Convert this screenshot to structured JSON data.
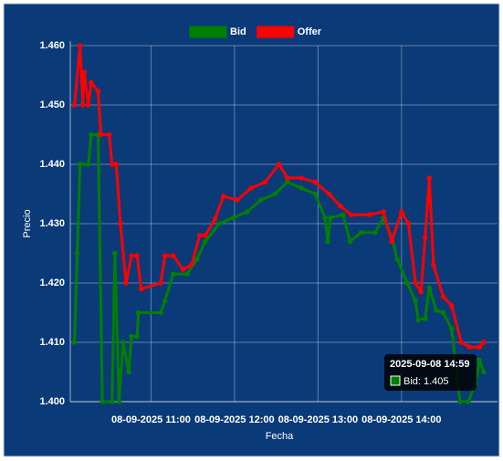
{
  "chart_data": {
    "type": "line",
    "xlabel": "Fecha",
    "ylabel": "Precio",
    "legend": "top",
    "grid": true,
    "xlim": [
      "2025-09-08 10:02",
      "2025-09-08 15:09"
    ],
    "xticks": [
      {
        "value": "2025-09-08 11:00",
        "label": "08-09-2025 11:00"
      },
      {
        "value": "2025-09-08 12:00",
        "label": "08-09-2025 12:00"
      },
      {
        "value": "2025-09-08 13:00",
        "label": "08-09-2025 13:00"
      },
      {
        "value": "2025-09-08 14:00",
        "label": "08-09-2025 14:00"
      }
    ],
    "ylim": [
      1.4,
      1.46
    ],
    "yticks": [
      {
        "value": 1.4,
        "label": "1.400"
      },
      {
        "value": 1.41,
        "label": "1.410"
      },
      {
        "value": 1.42,
        "label": "1.420"
      },
      {
        "value": 1.43,
        "label": "1.430"
      },
      {
        "value": 1.44,
        "label": "1.440"
      },
      {
        "value": 1.45,
        "label": "1.450"
      },
      {
        "value": 1.46,
        "label": "1.460"
      }
    ],
    "series": [
      {
        "name": "Bid",
        "color": "#008000",
        "x": [
          "2025-09-08 10:05",
          "2025-09-08 10:07",
          "2025-09-08 10:09",
          "2025-09-08 10:15",
          "2025-09-08 10:17",
          "2025-09-08 10:22",
          "2025-09-08 10:25",
          "2025-09-08 10:32",
          "2025-09-08 10:34",
          "2025-09-08 10:37",
          "2025-09-08 10:40",
          "2025-09-08 10:44",
          "2025-09-08 10:46",
          "2025-09-08 10:50",
          "2025-09-08 10:51",
          "2025-09-08 11:07",
          "2025-09-08 11:10",
          "2025-09-08 11:16",
          "2025-09-08 11:26",
          "2025-09-08 11:33",
          "2025-09-08 11:39",
          "2025-09-08 11:49",
          "2025-09-08 11:59",
          "2025-09-08 12:09",
          "2025-09-08 12:19",
          "2025-09-08 12:29",
          "2025-09-08 12:38",
          "2025-09-08 12:48",
          "2025-09-08 12:58",
          "2025-09-08 13:05",
          "2025-09-08 13:07",
          "2025-09-08 13:09",
          "2025-09-08 13:18",
          "2025-09-08 13:23",
          "2025-09-08 13:31",
          "2025-09-08 13:41",
          "2025-09-08 13:47",
          "2025-09-08 13:53",
          "2025-09-08 13:57",
          "2025-09-08 14:04",
          "2025-09-08 14:10",
          "2025-09-08 14:12",
          "2025-09-08 14:17",
          "2025-09-08 14:20",
          "2025-09-08 14:25",
          "2025-09-08 14:30",
          "2025-09-08 14:36",
          "2025-09-08 14:42",
          "2025-09-08 14:48",
          "2025-09-08 14:53",
          "2025-09-08 14:56",
          "2025-09-08 14:59"
        ],
        "values": [
          1.41,
          1.425,
          1.44,
          1.44,
          1.445,
          1.445,
          1.4,
          1.4,
          1.425,
          1.4,
          1.41,
          1.405,
          1.411,
          1.411,
          1.415,
          1.415,
          1.417,
          1.4215,
          1.4215,
          1.424,
          1.427,
          1.43,
          1.431,
          1.432,
          1.434,
          1.435,
          1.437,
          1.436,
          1.435,
          1.431,
          1.427,
          1.431,
          1.4315,
          1.427,
          1.4285,
          1.4285,
          1.431,
          1.4277,
          1.424,
          1.42,
          1.417,
          1.4138,
          1.414,
          1.4192,
          1.4154,
          1.415,
          1.4123,
          1.4,
          1.4,
          1.403,
          1.407,
          1.405
        ]
      },
      {
        "name": "Offer",
        "color": "#ff0000",
        "x": [
          "2025-09-08 10:05",
          "2025-09-08 10:09",
          "2025-09-08 10:11",
          "2025-09-08 10:12",
          "2025-09-08 10:15",
          "2025-09-08 10:17",
          "2025-09-08 10:22",
          "2025-09-08 10:24",
          "2025-09-08 10:30",
          "2025-09-08 10:32",
          "2025-09-08 10:35",
          "2025-09-08 10:38",
          "2025-09-08 10:42",
          "2025-09-08 10:46",
          "2025-09-08 10:50",
          "2025-09-08 10:53",
          "2025-09-08 11:07",
          "2025-09-08 11:10",
          "2025-09-08 11:16",
          "2025-09-08 11:23",
          "2025-09-08 11:29",
          "2025-09-08 11:35",
          "2025-09-08 11:39",
          "2025-09-08 11:46",
          "2025-09-08 11:52",
          "2025-09-08 12:02",
          "2025-09-08 12:12",
          "2025-09-08 12:22",
          "2025-09-08 12:32",
          "2025-09-08 12:38",
          "2025-09-08 12:48",
          "2025-09-08 12:58",
          "2025-09-08 13:08",
          "2025-09-08 13:16",
          "2025-09-08 13:24",
          "2025-09-08 13:37",
          "2025-09-08 13:47",
          "2025-09-08 13:53",
          "2025-09-08 14:00",
          "2025-09-08 14:05",
          "2025-09-08 14:10",
          "2025-09-08 14:14",
          "2025-09-08 14:17",
          "2025-09-08 14:20",
          "2025-09-08 14:23",
          "2025-09-08 14:30",
          "2025-09-08 14:36",
          "2025-09-08 14:43",
          "2025-09-08 14:49",
          "2025-09-08 14:56",
          "2025-09-08 14:59"
        ],
        "values": [
          1.45,
          1.46,
          1.45,
          1.4555,
          1.45,
          1.4538,
          1.4523,
          1.445,
          1.445,
          1.44,
          1.44,
          1.43,
          1.42,
          1.4246,
          1.4246,
          1.419,
          1.42,
          1.4246,
          1.4246,
          1.4223,
          1.423,
          1.428,
          1.428,
          1.4308,
          1.4346,
          1.434,
          1.436,
          1.437,
          1.44,
          1.4377,
          1.4377,
          1.437,
          1.435,
          1.433,
          1.4315,
          1.4315,
          1.432,
          1.427,
          1.432,
          1.43,
          1.42,
          1.4185,
          1.4277,
          1.4377,
          1.423,
          1.4177,
          1.4162,
          1.41,
          1.4092,
          1.4092,
          1.41
        ]
      }
    ],
    "tooltip": {
      "title": "2025-09-08 14:59",
      "label": "Bid: 1.405"
    }
  }
}
